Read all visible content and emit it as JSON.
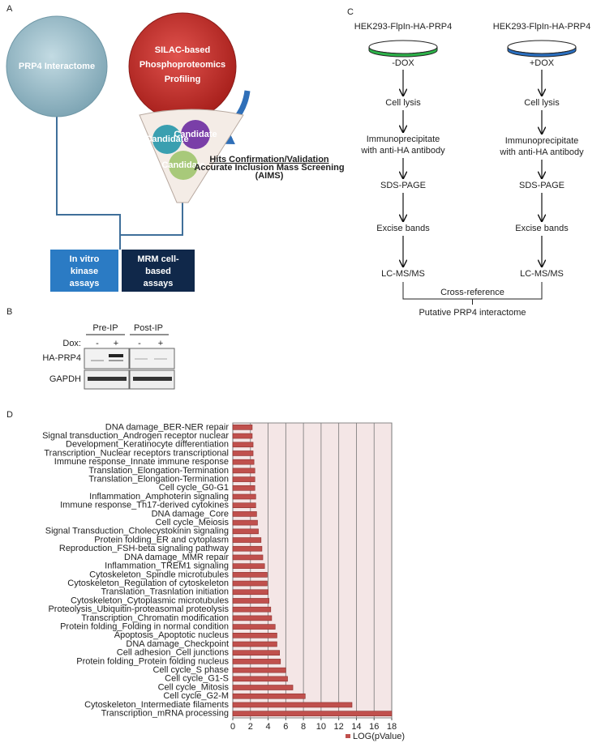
{
  "panels": {
    "a": {
      "label": "A",
      "interactome": "PRP4 Interactome",
      "silac": [
        "SILAC-based",
        "Phosphoproteomics",
        "Profiling"
      ],
      "candidates": [
        "Candidate",
        "Candidate",
        "Candidate"
      ],
      "hits_title": "Hits Confirmation/Validation",
      "aims": [
        "Accurate Inclusion Mass Screening",
        "(AIMS)"
      ],
      "in_vitro": [
        "In vitro",
        "kinase",
        "assays"
      ],
      "mrm": [
        "MRM cell-",
        "based",
        "assays"
      ]
    },
    "b": {
      "label": "B",
      "groups": [
        "Pre-IP",
        "Post-IP"
      ],
      "dox_label": "Dox:",
      "dox": [
        "-",
        "+",
        "-",
        "+"
      ],
      "rows": [
        "HA-PRP4",
        "GAPDH"
      ]
    },
    "c": {
      "label": "C",
      "columns": [
        {
          "cell_line": "HEK293-FlpIn-HA-PRP4",
          "treatment": "-DOX",
          "steps": [
            [
              "Cell lysis"
            ],
            [
              "Immunoprecipitate",
              "with anti-HA antibody"
            ],
            [
              "SDS-PAGE"
            ],
            [
              "Excise bands"
            ],
            [
              "LC-MS/MS"
            ]
          ]
        },
        {
          "cell_line": "HEK293-FlpIn-HA-PRP4",
          "treatment": "+DOX",
          "steps": [
            [
              "Cell lysis"
            ],
            [
              "Immunoprecipitate",
              "with anti-HA antibody"
            ],
            [
              "SDS-PAGE"
            ],
            [
              "Excise bands"
            ],
            [
              "LC-MS/MS"
            ]
          ]
        }
      ],
      "cross_reference": "Cross-reference",
      "result": "Putative PRP4 interactome"
    }
  },
  "chart_data": {
    "type": "bar",
    "orientation": "horizontal",
    "panel_label": "D",
    "categories": [
      "DNA damage_BER-NER repair",
      "Signal transduction_Androgen receptor nuclear",
      "Development_Keratinocyte differentiation",
      "Transcription_Nuclear receptors transcriptional",
      "Immune response_Innate immune response",
      "Translation_Elongation-Termination",
      "Translation_Elongation-Termination",
      "Cell cycle_G0-G1",
      "Inflammation_Amphoterin signaling",
      "Immune response_Th17-derived cytokines",
      "DNA damage_Core",
      "Cell cycle_Meiosis",
      "Signal Transduction_Cholecystokinin signaling",
      "Protein folding_ER and cytoplasm",
      "Reproduction_FSH-beta signaling pathway",
      "DNA damage_MMR repair",
      "Inflammation_TREM1 signaling",
      "Cytoskeleton_Spindle microtubules",
      "Cytoskeleton_Regulation of cytoskeleton",
      "Translation_Trasnlation initiation",
      "Cytoskeleton_Cytoplasmic microtubules",
      "Proteolysis_Ubiquitin-proteasomal proteolysis",
      "Transcription_Chromatin modification",
      "Protein folding_Folding in normal condition",
      "Apoptosis_Apoptotic nucleus",
      "DNA damage_Checkpoint",
      "Cell adhesion_Cell junctions",
      "Protein folding_Protein folding nucleus",
      "Cell cycle_S phase",
      "Cell cycle_G1-S",
      "Cell cycle_Mitosis",
      "Cell cycle_G2-M",
      "Cytoskeleton_Intermediate filaments",
      "Transcription_mRNA processing"
    ],
    "series": [
      {
        "name": "LOG(pValue)",
        "color": "#c0504d",
        "values": [
          2.2,
          2.2,
          2.3,
          2.3,
          2.4,
          2.5,
          2.5,
          2.5,
          2.6,
          2.6,
          2.7,
          2.8,
          2.9,
          3.2,
          3.3,
          3.4,
          3.6,
          3.9,
          3.9,
          4.0,
          4.1,
          4.3,
          4.4,
          4.8,
          5.0,
          5.0,
          5.3,
          5.4,
          6.0,
          6.2,
          6.8,
          8.2,
          13.5,
          18.0
        ]
      }
    ],
    "xlim": [
      0,
      18
    ],
    "xticks": [
      0,
      2,
      4,
      6,
      8,
      10,
      12,
      14,
      16,
      18
    ],
    "grid": true,
    "legend": "bottom-right"
  }
}
